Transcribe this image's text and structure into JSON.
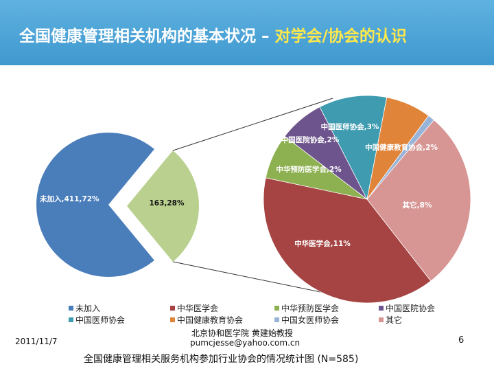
{
  "title": {
    "main": "全国健康管理相关机构的基本状况 – ",
    "highlight": "对学会/协会的认识"
  },
  "chart_data": {
    "type": "pie",
    "subtype": "pie-of-pie",
    "caption": "全国健康管理相关服务机构参加行业协会的情况统计图 (N=585)",
    "primary": [
      {
        "name": "未加入",
        "count": 411,
        "percent": 72,
        "label": "未加入,411,72%",
        "color": "#4a7ebb"
      },
      {
        "name": "",
        "count": 163,
        "percent": 28,
        "label": "163,28%",
        "color": "#b9d08e"
      }
    ],
    "secondary": [
      {
        "name": "中华医学会",
        "percent": 11,
        "label": "中华医学会,11%",
        "color": "#a54443"
      },
      {
        "name": "中华预防医学会",
        "percent": 2,
        "label": "中华预防医学会,2%",
        "color": "#8db050"
      },
      {
        "name": "中国医院协会",
        "percent": 2,
        "label": "中国医院协会,2%",
        "color": "#6e548d"
      },
      {
        "name": "中国医师协会",
        "percent": 3,
        "label": "中国医师协会,3%",
        "color": "#3e9bb0"
      },
      {
        "name": "中国健康教育协会",
        "percent": 2,
        "label": "中国健康教育协会,2%",
        "color": "#e0843a"
      },
      {
        "name": "中国女医师协会",
        "percent": 0.3,
        "label": "",
        "color": "#97b3d8"
      },
      {
        "name": "其它",
        "percent": 8,
        "label": "其它,8%",
        "color": "#d79694"
      }
    ],
    "legend": [
      "未加入",
      "中华医学会",
      "中华预防医学会",
      "中国医院协会",
      "中国医师协会",
      "中国健康教育协会",
      "中国女医师协会",
      "其它"
    ],
    "legend_colors": [
      "#4a7ebb",
      "#a54443",
      "#8db050",
      "#6e548d",
      "#3e9bb0",
      "#e0843a",
      "#97b3d8",
      "#d79694"
    ],
    "legend_position": "bottom"
  },
  "footer": {
    "date": "2011/11/7",
    "author": "北京协和医学院 黄建始教授",
    "email": "pumcjesse@yahoo.com.cn",
    "page": "6"
  }
}
